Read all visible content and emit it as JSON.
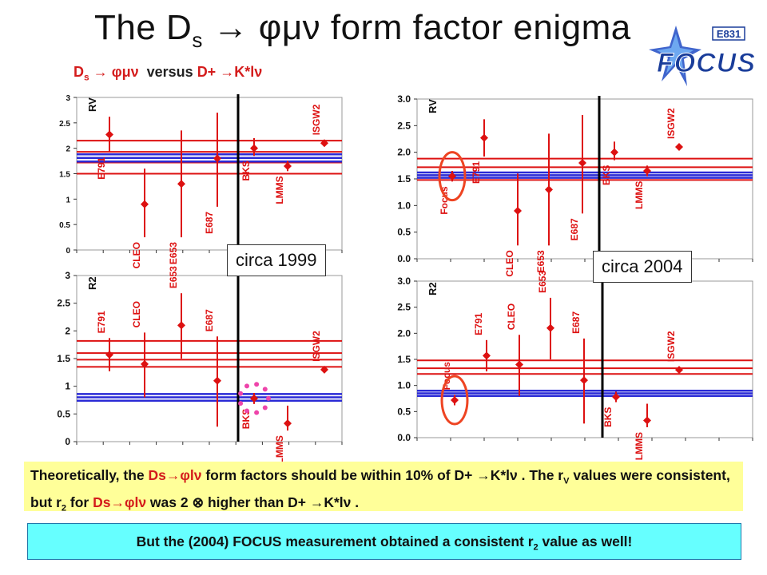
{
  "title": {
    "prefix": "The D",
    "sub": "s",
    "arrow": "→",
    "decay": "φμν",
    "suffix": "form factor enigma"
  },
  "subtitle": {
    "p1": "D",
    "p1sub": "s",
    "p2": "→ φμν",
    "p3": "versus",
    "p4": "D+ →K*lν"
  },
  "logo": {
    "top": "E831",
    "main": "FOCUS"
  },
  "callouts": {
    "c1999": "circa 1999",
    "c2004": "circa 2004"
  },
  "colors": {
    "data": "#dd1111",
    "band_red": "#dd1111",
    "band_blue": "#2a2ad6",
    "focus_circle": "#ee4422",
    "bks_circle": "#ee44aa"
  },
  "note1": {
    "t1": "Theoretically, the ",
    "t2": "Ds→φlν",
    "t3": " form factors should be within 10% of  D+ →K*lν .  The r",
    "t3sub": "V",
    "t4": " values were consistent, but r",
    "t4sub": "2",
    "t5": " for ",
    "t6": "Ds→φlν",
    "t7": " was  2 ⊗ higher than  D+ →K*lν ."
  },
  "note2": {
    "t1": "But the (2004) FOCUS measurement obtained a consistent r",
    "sub": "2",
    "t2": " value as well!"
  },
  "chart_data": [
    {
      "type": "scatter",
      "label": "RV",
      "era": "1999",
      "ylim": [
        0,
        3
      ],
      "yticks": [
        "0",
        "0.5",
        "1",
        "1.5",
        "2",
        "2.5",
        "3"
      ],
      "points": [
        {
          "name": "E791",
          "y": 2.27,
          "lo": 1.92,
          "hi": 2.62
        },
        {
          "name": "CLEO",
          "y": 0.9,
          "lo": 0.25,
          "hi": 1.6
        },
        {
          "name": "E653",
          "y": 1.3,
          "lo": 0.25,
          "hi": 2.35
        },
        {
          "name": "E687",
          "y": 1.8,
          "lo": 0.85,
          "hi": 2.7
        },
        {
          "name": "BKS",
          "y": 2.0,
          "lo": 1.85,
          "hi": 2.2
        },
        {
          "name": "LMMS",
          "y": 1.65,
          "lo": 1.55,
          "hi": 1.75
        },
        {
          "name": "ISGW2",
          "y": 2.1,
          "lo": 2.1,
          "hi": 2.1
        }
      ],
      "red_lines": [
        2.15,
        1.93,
        1.72,
        1.5
      ],
      "blue_lines": [
        1.88,
        1.81,
        1.74
      ]
    },
    {
      "type": "scatter",
      "label": "RV",
      "era": "2004",
      "ylim": [
        0,
        3
      ],
      "yticks": [
        "0.0",
        "0.5",
        "1.0",
        "1.5",
        "2.0",
        "2.5",
        "3.0"
      ],
      "points": [
        {
          "name": "Focus",
          "y": 1.55,
          "lo": 1.45,
          "hi": 1.65
        },
        {
          "name": "E791",
          "y": 2.27,
          "lo": 1.92,
          "hi": 2.62
        },
        {
          "name": "CLEO",
          "y": 0.9,
          "lo": 0.25,
          "hi": 1.6
        },
        {
          "name": "E653",
          "y": 1.3,
          "lo": 0.25,
          "hi": 2.35
        },
        {
          "name": "E687",
          "y": 1.8,
          "lo": 0.85,
          "hi": 2.7
        },
        {
          "name": "BKS",
          "y": 2.0,
          "lo": 1.85,
          "hi": 2.2
        },
        {
          "name": "LMMS",
          "y": 1.65,
          "lo": 1.55,
          "hi": 1.75
        },
        {
          "name": "ISGW2",
          "y": 2.1,
          "lo": 2.1,
          "hi": 2.1
        }
      ],
      "red_lines": [
        1.88,
        1.72,
        1.48
      ],
      "blue_lines": [
        1.62,
        1.57,
        1.52
      ]
    },
    {
      "type": "scatter",
      "label": "R2",
      "era": "1999",
      "ylim": [
        0,
        3
      ],
      "yticks": [
        "0",
        "0.5",
        "1",
        "1.5",
        "2",
        "2.5",
        "3"
      ],
      "points": [
        {
          "name": "E791",
          "y": 1.57,
          "lo": 1.27,
          "hi": 1.87
        },
        {
          "name": "CLEO",
          "y": 1.4,
          "lo": 0.8,
          "hi": 1.97
        },
        {
          "name": "E653",
          "y": 2.1,
          "lo": 1.5,
          "hi": 2.68
        },
        {
          "name": "E687",
          "y": 1.1,
          "lo": 0.27,
          "hi": 1.9
        },
        {
          "name": "BKS",
          "y": 0.78,
          "lo": 0.68,
          "hi": 0.88
        },
        {
          "name": "LMMS",
          "y": 0.33,
          "lo": 0.2,
          "hi": 0.65
        },
        {
          "name": "ISGW2",
          "y": 1.3,
          "lo": 1.3,
          "hi": 1.3
        }
      ],
      "red_lines": [
        1.82,
        1.6,
        1.48,
        1.35
      ],
      "blue_lines": [
        0.86,
        0.8,
        0.74
      ]
    },
    {
      "type": "scatter",
      "label": "R2",
      "era": "2004",
      "ylim": [
        0,
        3
      ],
      "yticks": [
        "0.0",
        "0.5",
        "1.0",
        "1.5",
        "2.0",
        "2.5",
        "3.0"
      ],
      "points": [
        {
          "name": "Focus",
          "y": 0.72,
          "lo": 0.62,
          "hi": 0.82
        },
        {
          "name": "E791",
          "y": 1.57,
          "lo": 1.27,
          "hi": 1.87
        },
        {
          "name": "CLEO",
          "y": 1.4,
          "lo": 0.8,
          "hi": 1.97
        },
        {
          "name": "E653",
          "y": 2.1,
          "lo": 1.5,
          "hi": 2.68
        },
        {
          "name": "E687",
          "y": 1.1,
          "lo": 0.27,
          "hi": 1.9
        },
        {
          "name": "BKS",
          "y": 0.78,
          "lo": 0.68,
          "hi": 0.88
        },
        {
          "name": "LMMS",
          "y": 0.33,
          "lo": 0.2,
          "hi": 0.65
        },
        {
          "name": "ISGW2",
          "y": 1.3,
          "lo": 1.3,
          "hi": 1.3
        }
      ],
      "red_lines": [
        1.48,
        1.33,
        1.22
      ],
      "blue_lines": [
        0.9,
        0.85,
        0.8
      ]
    }
  ]
}
